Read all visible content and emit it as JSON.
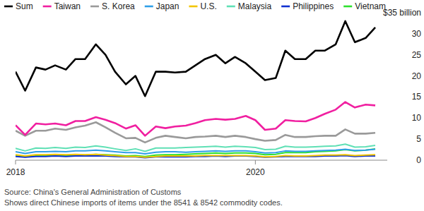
{
  "chart_data": {
    "type": "line",
    "legend": "top",
    "grid": false,
    "x": [
      2018,
      2018.08,
      2018.17,
      2018.25,
      2018.33,
      2018.42,
      2018.5,
      2018.58,
      2018.67,
      2018.75,
      2018.83,
      2018.92,
      2019,
      2019.08,
      2019.17,
      2019.25,
      2019.33,
      2019.42,
      2019.5,
      2019.58,
      2019.67,
      2019.75,
      2019.83,
      2019.92,
      2020,
      2020.08,
      2020.17,
      2020.25,
      2020.33,
      2020.42,
      2020.5,
      2020.58,
      2020.67,
      2020.75,
      2020.83,
      2020.92,
      2021
    ],
    "xlim": [
      2018,
      2021.1
    ],
    "xticks": [
      2018,
      2020
    ],
    "ylim": [
      0,
      35
    ],
    "yticks": [
      0,
      5,
      10,
      15,
      20,
      25,
      30,
      {
        "value": 35,
        "label": "$35 billion"
      }
    ],
    "series": [
      {
        "name": "Sum",
        "color": "#000000",
        "values": [
          21,
          16.5,
          22,
          21.5,
          22.5,
          21.5,
          24,
          24,
          27.5,
          25,
          21,
          18,
          20,
          15.2,
          21,
          21,
          20.8,
          21,
          22.5,
          24,
          25,
          23,
          24.5,
          23,
          21,
          19,
          19.5,
          26,
          24,
          24,
          26,
          26,
          27.5,
          33,
          28,
          29,
          31.5
        ]
      },
      {
        "name": "Taiwan",
        "color": "#f01fa0",
        "values": [
          8.3,
          6,
          8.7,
          8.5,
          8.7,
          8.3,
          9.3,
          9.3,
          10.2,
          9.6,
          8.8,
          7.5,
          8.3,
          5.8,
          8,
          7.6,
          8,
          8.2,
          8.8,
          9.5,
          9.8,
          9.6,
          9.8,
          10.5,
          9.5,
          7.2,
          7.5,
          9.5,
          9.3,
          9.2,
          10,
          11,
          12,
          13.8,
          12.5,
          13.2,
          13
        ]
      },
      {
        "name": "S. Korea",
        "color": "#9a9a9a",
        "values": [
          7,
          5.8,
          7,
          7,
          7.5,
          7.2,
          7.8,
          8.2,
          9,
          7.8,
          6.5,
          5.2,
          5.3,
          4.2,
          5.3,
          5.8,
          5.5,
          5.2,
          5.5,
          5.6,
          5.8,
          5.5,
          5.8,
          5.5,
          5,
          4.6,
          4.8,
          6,
          5.5,
          5.5,
          5.7,
          5.8,
          5.8,
          7.3,
          6.3,
          6.3,
          6.5
        ]
      },
      {
        "name": "Japan",
        "color": "#2f9fe8",
        "values": [
          2,
          1.6,
          2,
          2,
          2.1,
          2,
          2.2,
          2.2,
          2.4,
          2.2,
          2,
          1.8,
          1.8,
          1.5,
          1.9,
          2,
          2,
          1.9,
          2,
          2.1,
          2.2,
          2.1,
          2.2,
          2.2,
          2,
          1.7,
          1.8,
          2.2,
          2.1,
          2.1,
          2.2,
          2.3,
          2.4,
          2.6,
          2.3,
          2.4,
          2.6
        ]
      },
      {
        "name": "U.S.",
        "color": "#f2c500",
        "values": [
          1.3,
          1,
          1.3,
          1.3,
          1.4,
          1.3,
          1.4,
          1.3,
          1.4,
          1.2,
          1.1,
          0.9,
          0.9,
          0.7,
          0.9,
          1,
          1,
          1,
          1,
          1.1,
          1.1,
          1.1,
          1.1,
          1.1,
          1,
          0.8,
          0.9,
          1.1,
          1,
          1,
          1.1,
          1.2,
          1.2,
          1.3,
          1.1,
          1.2,
          1.3
        ]
      },
      {
        "name": "Malaysia",
        "color": "#5fe0b5",
        "values": [
          2.8,
          2.2,
          2.9,
          2.8,
          3,
          2.8,
          3.1,
          3,
          3.4,
          3.1,
          2.7,
          2.3,
          2.7,
          2.1,
          2.9,
          2.9,
          2.9,
          3,
          3.1,
          3.2,
          3.3,
          3.1,
          3.3,
          3.2,
          3,
          2.5,
          2.6,
          3.3,
          3.1,
          3.1,
          3.2,
          3.3,
          3.4,
          3.8,
          3.1,
          3.2,
          3.5
        ]
      },
      {
        "name": "Philippines",
        "color": "#1030d0",
        "values": [
          0.9,
          0.7,
          0.9,
          0.9,
          1,
          0.9,
          1,
          1,
          1,
          1,
          0.9,
          0.8,
          0.8,
          0.6,
          0.8,
          0.8,
          0.8,
          0.8,
          0.9,
          0.9,
          1,
          0.9,
          1,
          1,
          0.9,
          0.7,
          0.8,
          0.9,
          0.9,
          0.9,
          0.9,
          1,
          1,
          1.1,
          0.9,
          1,
          1
        ]
      },
      {
        "name": "Vietnam",
        "color": "#2ee02e",
        "values": [
          1,
          0.8,
          1,
          1,
          1.1,
          1,
          1.2,
          1.2,
          1.4,
          1.3,
          1.2,
          1,
          1.1,
          0.9,
          1.2,
          1.3,
          1.3,
          1.4,
          1.5,
          1.6,
          1.7,
          1.6,
          1.7,
          1.7,
          1.6,
          1.3,
          1.4,
          1.8,
          1.8,
          1.8,
          2,
          2.1,
          2.2,
          2.5,
          2.2,
          2.4,
          2.7
        ]
      }
    ],
    "source": "Source: China's General Administration of Customs",
    "note": "Shows direct Chinese imports of items under the 8541 & 8542 commodity codes."
  }
}
